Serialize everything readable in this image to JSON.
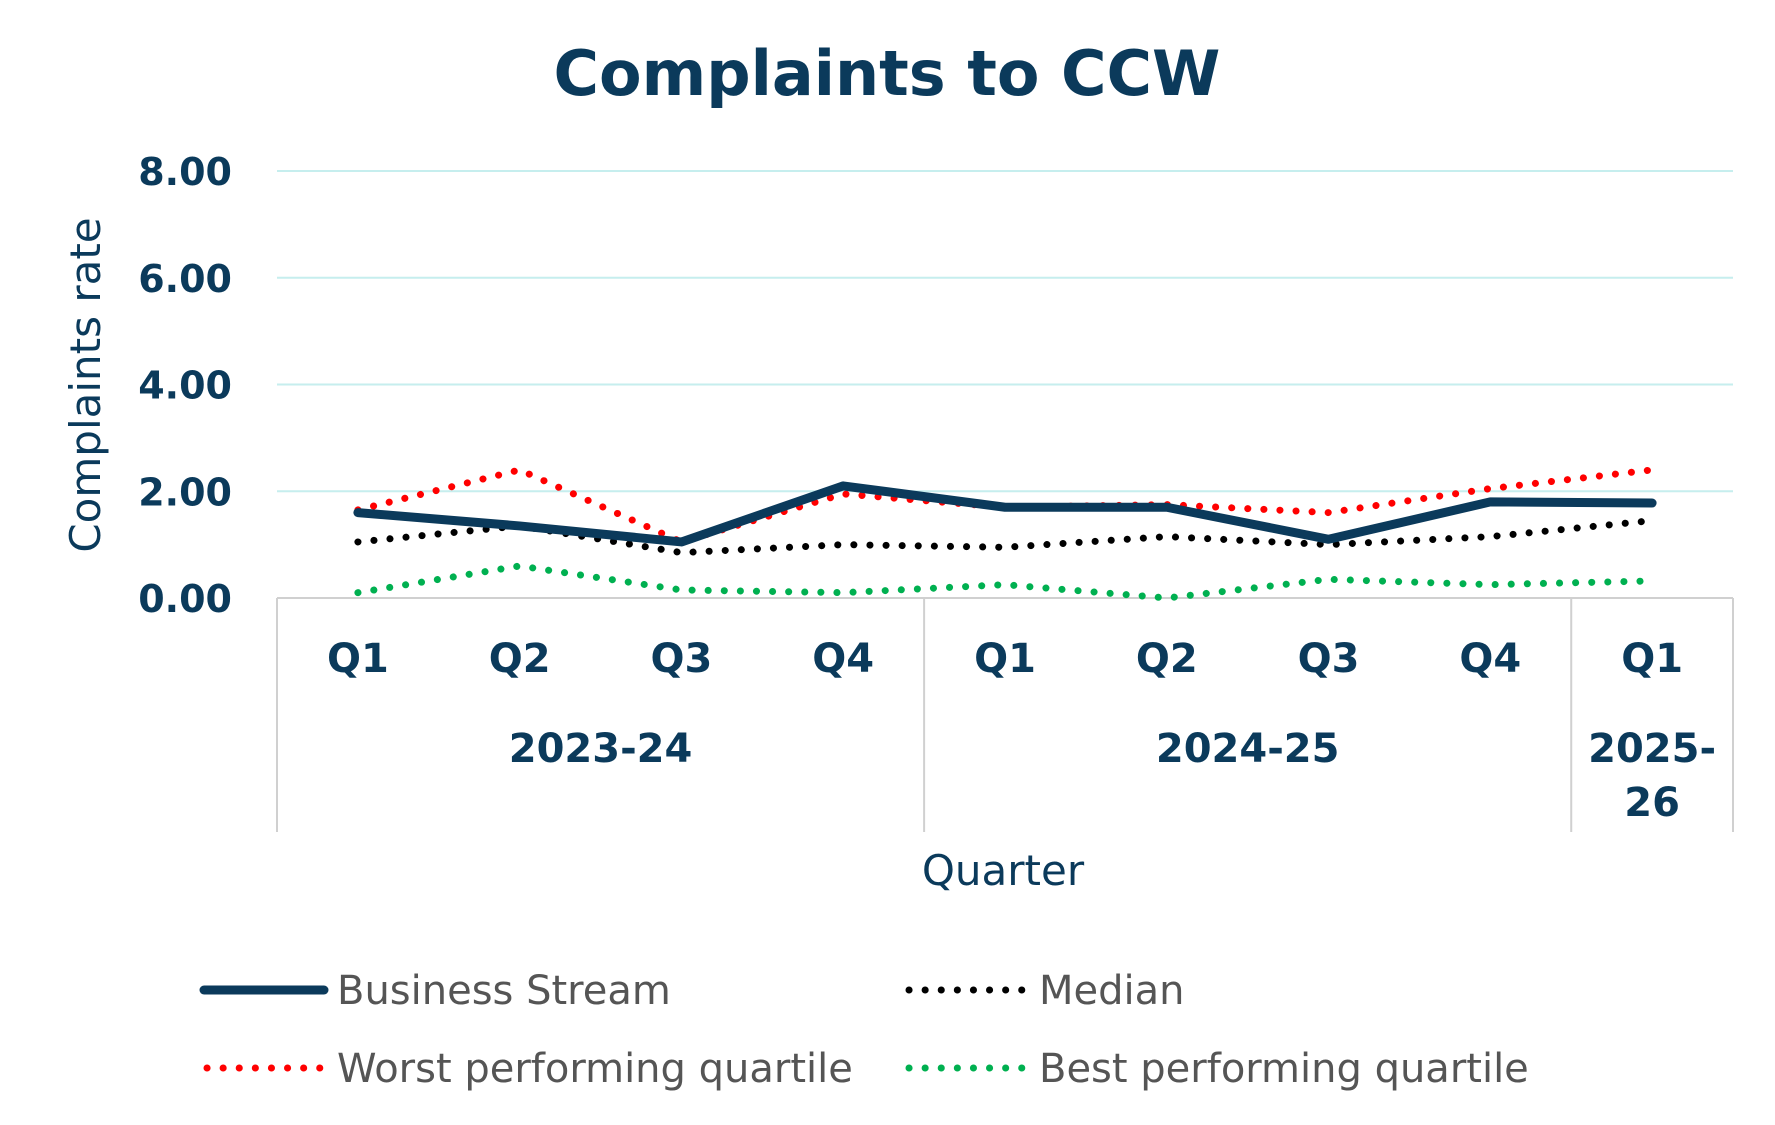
{
  "chart_data": {
    "type": "line",
    "title": "Complaints to CCW",
    "xlabel": "Quarter",
    "ylabel": "Complaints rate",
    "ylim": [
      0,
      8
    ],
    "yticks": [
      "0.00",
      "2.00",
      "4.00",
      "6.00",
      "8.00"
    ],
    "categories": [
      "Q1",
      "Q2",
      "Q3",
      "Q4",
      "Q1",
      "Q2",
      "Q3",
      "Q4",
      "Q1"
    ],
    "groups": [
      {
        "label": "2023-24",
        "lines": [
          "2023-24"
        ],
        "start": 0,
        "end": 3
      },
      {
        "label": "2024-25",
        "lines": [
          "2024-25"
        ],
        "start": 4,
        "end": 7
      },
      {
        "label": "2025-26",
        "lines": [
          "2025-",
          "26"
        ],
        "start": 8,
        "end": 8
      }
    ],
    "grid": true,
    "legend_position": "bottom",
    "series": [
      {
        "name": "Business Stream",
        "color": "#0b3a5b",
        "style": "solid",
        "values": [
          1.6,
          1.35,
          1.05,
          2.1,
          1.7,
          1.7,
          1.1,
          1.8,
          1.78
        ]
      },
      {
        "name": "Median",
        "color": "#000000",
        "style": "dotted",
        "values": [
          1.05,
          1.35,
          0.85,
          1.0,
          0.95,
          1.15,
          1.0,
          1.15,
          1.45
        ]
      },
      {
        "name": "Worst performing quartile",
        "color": "#ff0000",
        "style": "dotted",
        "values": [
          1.65,
          2.4,
          1.05,
          1.95,
          1.7,
          1.75,
          1.6,
          2.05,
          2.4
        ]
      },
      {
        "name": "Best performing quartile",
        "color": "#00b050",
        "style": "dotted",
        "values": [
          0.1,
          0.6,
          0.15,
          0.1,
          0.25,
          0.0,
          0.35,
          0.25,
          0.32
        ]
      }
    ]
  }
}
